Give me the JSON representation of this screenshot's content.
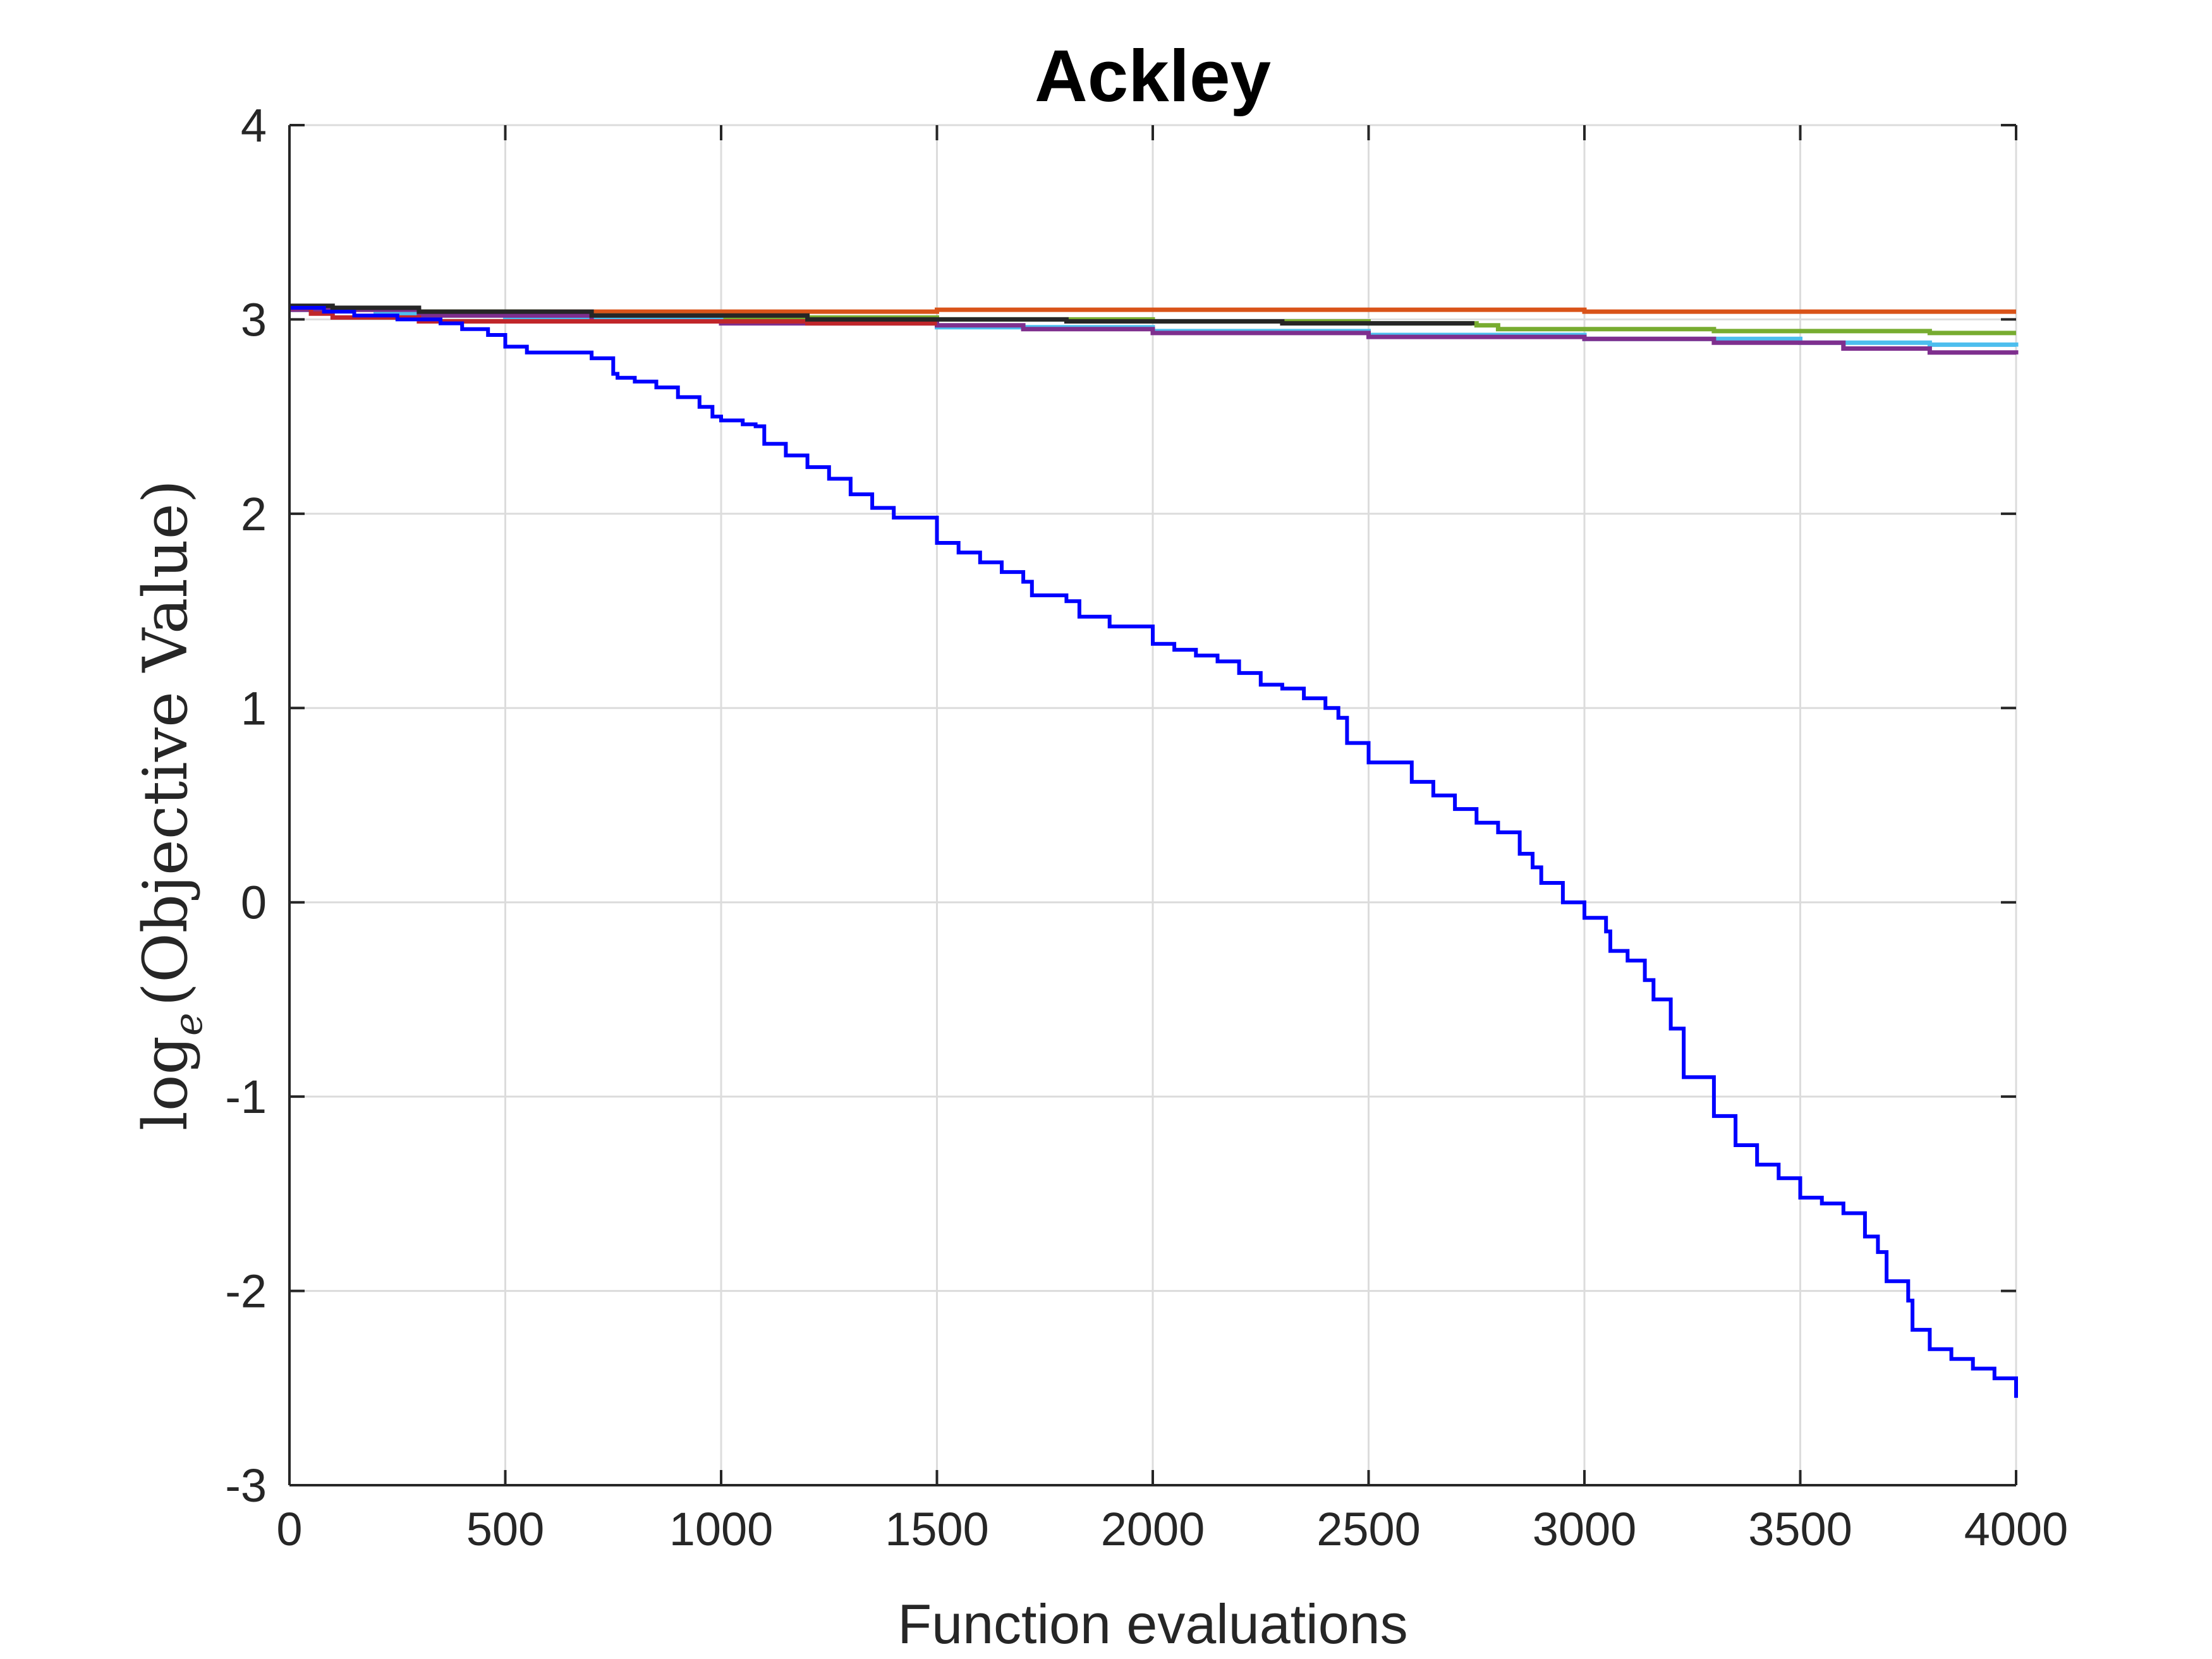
{
  "chart_data": {
    "type": "line",
    "title": "Ackley",
    "xlabel": "Function evaluations",
    "ylabel_main": "log",
    "ylabel_sub": "e",
    "ylabel_rest": "(Objective Value)",
    "xlim": [
      0,
      4000
    ],
    "ylim": [
      -3,
      4
    ],
    "xticks": [
      0,
      500,
      1000,
      1500,
      2000,
      2500,
      3000,
      3500,
      4000
    ],
    "xtick_labels": [
      "0",
      "500",
      "1000",
      "1500",
      "2000",
      "2500",
      "3000",
      "3500",
      "4000"
    ],
    "yticks": [
      -3,
      -2,
      -1,
      0,
      1,
      2,
      3,
      4
    ],
    "ytick_labels": [
      "-3",
      "-2",
      "-1",
      "0",
      "1",
      "2",
      "3",
      "4"
    ],
    "grid": true,
    "series": [
      {
        "color": "#D95319",
        "x": [
          0,
          100,
          300,
          600,
          1000,
          1500,
          2000,
          2500,
          3000,
          3500,
          4000
        ],
        "values": [
          3.05,
          3.05,
          3.04,
          3.04,
          3.04,
          3.05,
          3.05,
          3.05,
          3.04,
          3.04,
          3.04
        ]
      },
      {
        "color": "#77AC30",
        "x": [
          0,
          200,
          600,
          1000,
          1500,
          2000,
          2500,
          2750,
          2800,
          3000,
          3300,
          3600,
          3800,
          4000
        ],
        "values": [
          3.06,
          3.04,
          3.02,
          3.01,
          3.0,
          2.99,
          2.98,
          2.97,
          2.95,
          2.95,
          2.94,
          2.94,
          2.93,
          2.93
        ]
      },
      {
        "color": "#4DBEEE",
        "x": [
          0,
          200,
          500,
          1000,
          1500,
          2000,
          2500,
          3000,
          3500,
          3800,
          4000
        ],
        "values": [
          3.05,
          3.03,
          3.01,
          2.99,
          2.96,
          2.94,
          2.92,
          2.9,
          2.88,
          2.87,
          2.86
        ]
      },
      {
        "color": "#7E2F8E",
        "x": [
          0,
          300,
          700,
          1000,
          1500,
          1700,
          2000,
          2500,
          3000,
          3300,
          3600,
          3800,
          4000
        ],
        "values": [
          3.05,
          3.02,
          2.99,
          2.98,
          2.97,
          2.95,
          2.93,
          2.91,
          2.9,
          2.88,
          2.85,
          2.83,
          2.82
        ]
      },
      {
        "color": "#C0262A",
        "x": [
          0,
          50,
          100,
          300,
          800,
          1200,
          1500
        ],
        "values": [
          3.06,
          3.03,
          3.01,
          2.99,
          2.99,
          2.98,
          2.98
        ]
      },
      {
        "color": "#262626",
        "x": [
          0,
          100,
          300,
          700,
          1200,
          1800,
          2300,
          2740
        ],
        "values": [
          3.07,
          3.06,
          3.04,
          3.02,
          3.0,
          2.99,
          2.98,
          2.97
        ]
      },
      {
        "color": "#0000FF",
        "x": [
          0,
          80,
          150,
          250,
          350,
          400,
          460,
          500,
          550,
          700,
          750,
          760,
          800,
          850,
          900,
          950,
          980,
          1000,
          1050,
          1080,
          1100,
          1150,
          1200,
          1250,
          1300,
          1350,
          1400,
          1500,
          1550,
          1600,
          1650,
          1700,
          1720,
          1800,
          1830,
          1900,
          2000,
          2050,
          2100,
          2150,
          2200,
          2250,
          2300,
          2350,
          2400,
          2430,
          2450,
          2500,
          2600,
          2650,
          2700,
          2750,
          2800,
          2850,
          2880,
          2900,
          2950,
          3000,
          3050,
          3060,
          3100,
          3140,
          3160,
          3200,
          3230,
          3300,
          3350,
          3400,
          3450,
          3500,
          3550,
          3600,
          3650,
          3680,
          3700,
          3750,
          3760,
          3800,
          3850,
          3900,
          3950,
          4000
        ],
        "values": [
          3.06,
          3.04,
          3.02,
          3.0,
          2.98,
          2.95,
          2.92,
          2.86,
          2.83,
          2.8,
          2.72,
          2.7,
          2.68,
          2.65,
          2.6,
          2.55,
          2.5,
          2.48,
          2.46,
          2.45,
          2.36,
          2.3,
          2.24,
          2.18,
          2.1,
          2.03,
          1.98,
          1.85,
          1.8,
          1.75,
          1.7,
          1.65,
          1.58,
          1.55,
          1.47,
          1.42,
          1.33,
          1.3,
          1.27,
          1.24,
          1.18,
          1.12,
          1.1,
          1.05,
          1.0,
          0.95,
          0.82,
          0.72,
          0.62,
          0.55,
          0.48,
          0.41,
          0.36,
          0.25,
          0.18,
          0.1,
          0.0,
          -0.08,
          -0.15,
          -0.25,
          -0.3,
          -0.4,
          -0.5,
          -0.65,
          -0.9,
          -1.1,
          -1.25,
          -1.35,
          -1.42,
          -1.52,
          -1.55,
          -1.6,
          -1.72,
          -1.8,
          -1.95,
          -2.05,
          -2.2,
          -2.3,
          -2.35,
          -2.4,
          -2.45,
          -2.55
        ]
      }
    ]
  }
}
